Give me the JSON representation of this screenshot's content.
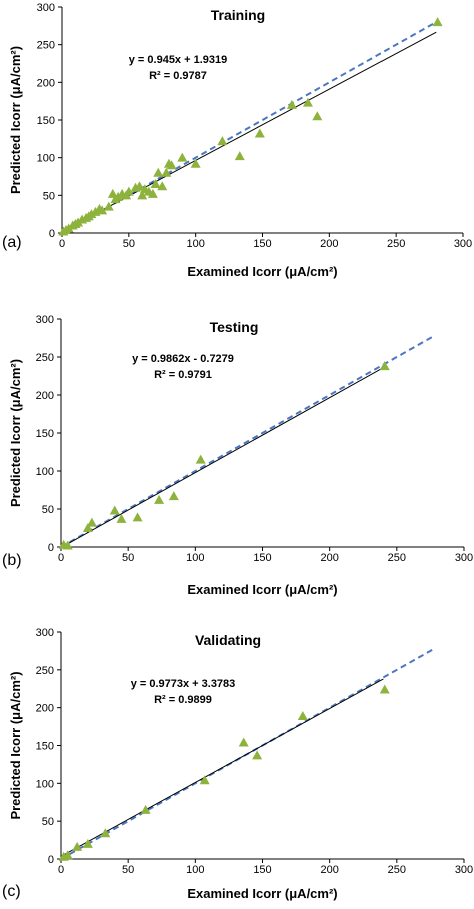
{
  "colors": {
    "marker": "#8DB33C",
    "dashed": "#4A76C2",
    "fit": "#000000",
    "axis": "#000000"
  },
  "chart_data": [
    {
      "type": "scatter",
      "panel_label": "(a)",
      "title": "Training",
      "xlabel": "Examined Icorr (μA/cm²)",
      "ylabel": "Predicted Icorr (μA/cm²)",
      "equation": "y = 0.945x + 1.9319",
      "r2": "R² = 0.9787",
      "xlim": [
        0,
        300
      ],
      "ylim": [
        0,
        300
      ],
      "xticks": [
        "0",
        "50",
        "100",
        "150",
        "200",
        "250",
        "300"
      ],
      "yticks": [
        "0",
        "50",
        "100",
        "150",
        "200",
        "250",
        "300"
      ],
      "fit": {
        "slope": 0.945,
        "intercept": 1.9319,
        "x_range": [
          0,
          280
        ]
      },
      "ideal_line": {
        "x_range": [
          0,
          280
        ]
      },
      "points": [
        [
          1,
          2
        ],
        [
          3,
          4
        ],
        [
          5,
          6
        ],
        [
          8,
          10
        ],
        [
          10,
          12
        ],
        [
          12,
          14
        ],
        [
          15,
          18
        ],
        [
          18,
          20
        ],
        [
          20,
          22
        ],
        [
          22,
          25
        ],
        [
          25,
          28
        ],
        [
          28,
          32
        ],
        [
          30,
          30
        ],
        [
          35,
          35
        ],
        [
          38,
          52
        ],
        [
          40,
          45
        ],
        [
          42,
          48
        ],
        [
          45,
          52
        ],
        [
          48,
          50
        ],
        [
          50,
          55
        ],
        [
          55,
          60
        ],
        [
          58,
          62
        ],
        [
          60,
          50
        ],
        [
          62,
          58
        ],
        [
          65,
          55
        ],
        [
          68,
          52
        ],
        [
          70,
          65
        ],
        [
          72,
          80
        ],
        [
          75,
          62
        ],
        [
          78,
          80
        ],
        [
          80,
          92
        ],
        [
          82,
          90
        ],
        [
          90,
          100
        ],
        [
          100,
          92
        ],
        [
          120,
          122
        ],
        [
          133,
          102
        ],
        [
          148,
          132
        ],
        [
          172,
          170
        ],
        [
          184,
          173
        ],
        [
          191,
          155
        ],
        [
          281,
          280
        ]
      ]
    },
    {
      "type": "scatter",
      "panel_label": "(b)",
      "title": "Testing",
      "xlabel": "Examined Icorr (μA/cm²)",
      "ylabel": "Predicted Icorr (μA/cm²)",
      "equation": "y = 0.9862x - 0.7279",
      "r2": "R² = 0.9791",
      "xlim": [
        0,
        300
      ],
      "ylim": [
        0,
        300
      ],
      "xticks": [
        "0",
        "50",
        "100",
        "150",
        "200",
        "250",
        "300"
      ],
      "yticks": [
        "0",
        "50",
        "100",
        "150",
        "200",
        "250",
        "300"
      ],
      "fit": {
        "slope": 0.9862,
        "intercept": -0.7279,
        "x_range": [
          0,
          241
        ]
      },
      "ideal_line": {
        "x_range": [
          0,
          278
        ]
      },
      "points": [
        [
          2,
          3
        ],
        [
          5,
          2
        ],
        [
          20,
          25
        ],
        [
          23,
          32
        ],
        [
          40,
          48
        ],
        [
          45,
          37
        ],
        [
          57,
          39
        ],
        [
          73,
          62
        ],
        [
          84,
          67
        ],
        [
          104,
          115
        ],
        [
          241,
          238
        ]
      ]
    },
    {
      "type": "scatter",
      "panel_label": "(c)",
      "title": "Validating",
      "xlabel": "Examined Icorr (μA/cm²)",
      "ylabel": "Predicted Icorr (μA/cm²)",
      "equation": "y = 0.9773x + 3.3783",
      "r2": "R² = 0.9899",
      "xlim": [
        0,
        300
      ],
      "ylim": [
        0,
        300
      ],
      "xticks": [
        "0",
        "50",
        "100",
        "150",
        "200",
        "250",
        "300"
      ],
      "yticks": [
        "0",
        "50",
        "100",
        "150",
        "200",
        "250",
        "300"
      ],
      "fit": {
        "slope": 0.9773,
        "intercept": 3.3783,
        "x_range": [
          0,
          240
        ]
      },
      "ideal_line": {
        "x_range": [
          0,
          278
        ]
      },
      "points": [
        [
          2,
          3
        ],
        [
          5,
          5
        ],
        [
          12,
          16
        ],
        [
          20,
          20
        ],
        [
          33,
          34
        ],
        [
          63,
          65
        ],
        [
          107,
          104
        ],
        [
          136,
          154
        ],
        [
          146,
          137
        ],
        [
          180,
          189
        ],
        [
          241,
          224
        ]
      ]
    }
  ]
}
